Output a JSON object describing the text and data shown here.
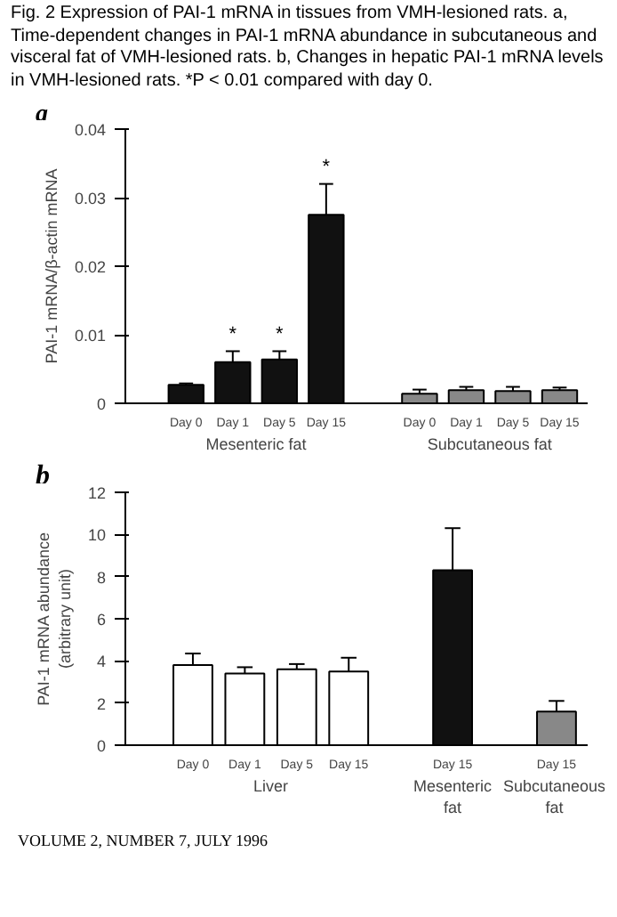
{
  "chart_data": [
    {
      "type": "bar",
      "title": "Fig. 2 Expression of PAI-1 mRNA in tissues from VMH-lesioned rats. a, Time-dependent changes in PAI-1 mRNA abundance in subcutaneous and visceral fat of VMH-lesioned rats. b, Changes in hepatic PAI-1 mRNA levels in VMH-lesioned rats. *P < 0.01 compared with day 0.",
      "subtitle": "a",
      "ylabel": "PAI-1 mRNA/β-actin mRNA",
      "categories": [
        "Day 0",
        "Day 1",
        "Day 5",
        "Day 15",
        null,
        "Day 0",
        "Day 1",
        "Day 5",
        "Day 15"
      ],
      "series": [
        {
          "name": "Mesenteric fat",
          "color": "#111111",
          "values": [
            0.0027,
            0.006,
            0.0064,
            0.0275,
            null,
            null,
            null,
            null,
            null
          ],
          "errors": [
            0.0002,
            0.0016,
            0.0012,
            0.0045,
            null,
            null,
            null,
            null,
            null
          ],
          "value_labels": [
            null,
            "*",
            "*",
            "*",
            null,
            null,
            null,
            null,
            null
          ]
        },
        {
          "name": "Subcutaneous fat",
          "color": "#888888",
          "values": [
            null,
            null,
            null,
            null,
            null,
            0.0014,
            0.0019,
            0.0018,
            0.0019
          ],
          "errors": [
            null,
            null,
            null,
            null,
            null,
            0.0006,
            0.0005,
            0.0006,
            0.0004
          ]
        }
      ],
      "ylim": [
        0,
        0.04
      ],
      "yticks": [
        0,
        0.01,
        0.02,
        0.03,
        0.04
      ],
      "grid": false,
      "legend": false
    },
    {
      "type": "bar",
      "title": "b",
      "ylabel": "PAI-1 mRNA abundance\n(arbitrary unit)",
      "categories": [
        "Day 0",
        "Day 1",
        "Day 5",
        "Day 15",
        null,
        "Day 15",
        null,
        "Day 15"
      ],
      "series": [
        {
          "name": "Liver",
          "color": "#ffffff",
          "values": [
            3.8,
            3.4,
            3.6,
            3.5,
            null,
            null,
            null,
            null
          ],
          "errors": [
            0.55,
            0.3,
            0.25,
            0.65,
            null,
            null,
            null,
            null
          ]
        },
        {
          "name": "Mesenteric fat",
          "color": "#111111",
          "values": [
            null,
            null,
            null,
            null,
            null,
            8.3,
            null,
            null
          ],
          "errors": [
            null,
            null,
            null,
            null,
            null,
            2.0,
            null,
            null
          ]
        },
        {
          "name": "Subcutaneous fat",
          "color": "#888888",
          "values": [
            null,
            null,
            null,
            null,
            null,
            null,
            null,
            1.6
          ],
          "errors": [
            null,
            null,
            null,
            null,
            null,
            null,
            null,
            0.5
          ]
        }
      ],
      "ylim": [
        0,
        12
      ],
      "yticks": [
        0,
        2,
        4,
        6,
        8,
        10,
        12
      ],
      "grid": false,
      "legend": false,
      "annotations": [
        "VOLUME 2, NUMBER 7, JULY 1996"
      ]
    }
  ]
}
